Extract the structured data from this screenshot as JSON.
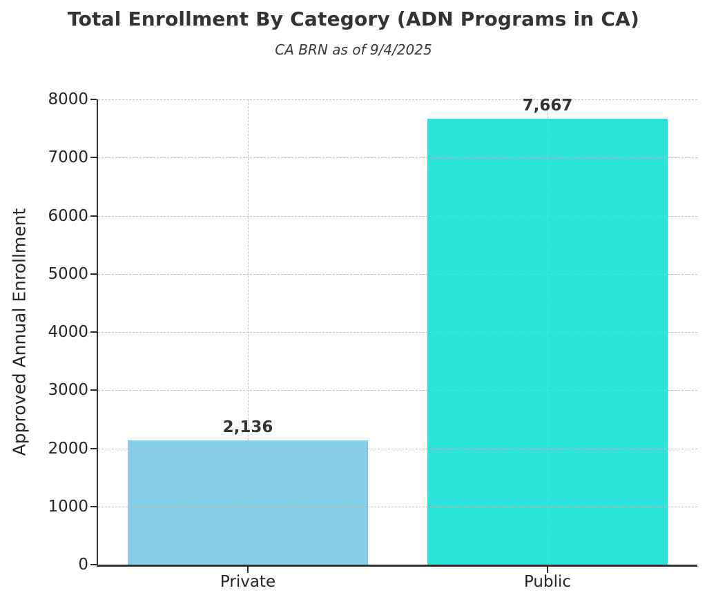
{
  "chart_data": {
    "type": "bar",
    "title": "Total Enrollment By Category (ADN Programs in CA)",
    "subtitle": "CA BRN as of 9/4/2025",
    "categories": [
      "Private",
      "Public"
    ],
    "values": [
      2136,
      7667
    ],
    "value_labels": [
      "2,136",
      "7,667"
    ],
    "bar_colors": [
      "#87CEEB",
      "#2BE3DA"
    ],
    "xlabel": "",
    "ylabel": "Approved Annual Enrollment",
    "ylim": [
      0,
      8000
    ],
    "ytick_step": 1000,
    "ytick_labels": [
      "0",
      "1000",
      "2000",
      "3000",
      "4000",
      "5000",
      "6000",
      "7000",
      "8000"
    ],
    "grid": "dashed-both-axes-above-bars",
    "legend": "none",
    "colors": {
      "grid": "#b9b9b9",
      "axis": "#303030",
      "tick_text": "#262626",
      "title_text": "#333333",
      "subtitle_text": "#3a3a3a"
    }
  }
}
